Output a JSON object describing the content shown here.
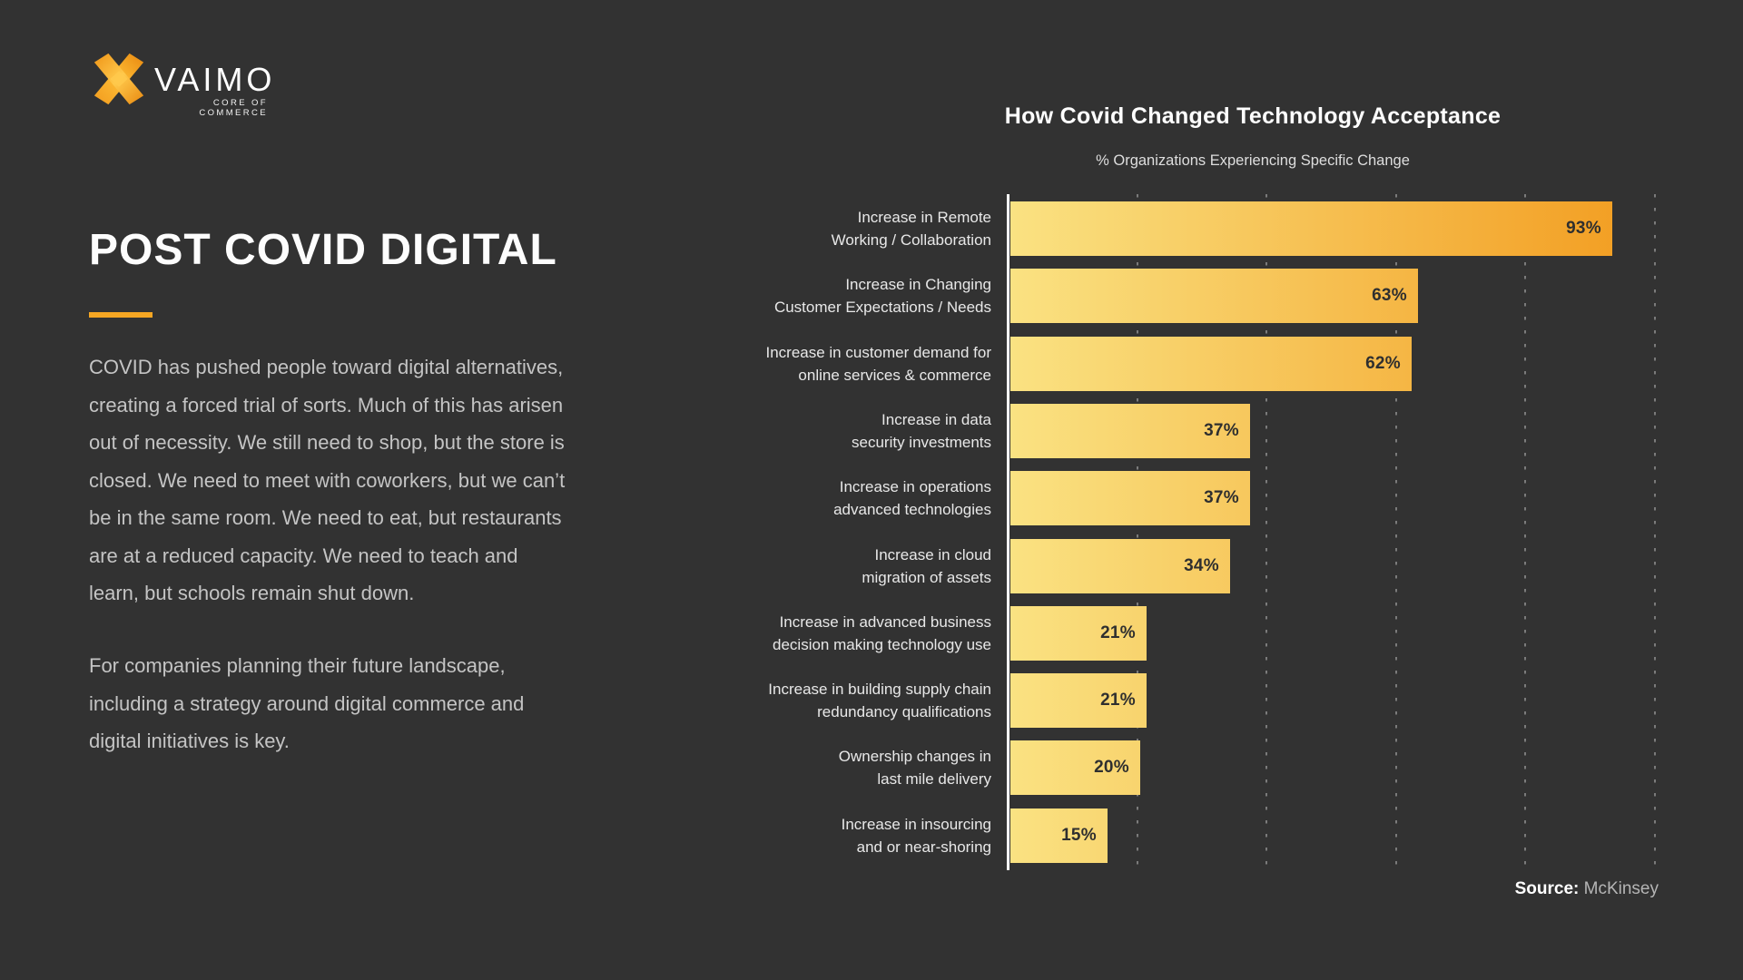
{
  "logo": {
    "brand": "VAIMO",
    "tagline": "CORE OF COMMERCE"
  },
  "left_panel": {
    "title": "POST COVID DIGITAL",
    "paragraph1": "COVID has pushed people toward digital alternatives,\ncreating a forced trial of sorts. Much of this has arisen\nout of necessity. We still need to shop, but the store is\nclosed. We need to meet with coworkers, but we can’t\nbe in the same room. We need to eat, but restaurants\nare at a reduced capacity. We need to teach and\nlearn, but schools remain shut down.",
    "paragraph2": "For companies planning their future landscape,\nincluding a strategy around digital commerce and\ndigital initiatives is key."
  },
  "chart": {
    "title": "How Covid Changed Technology Acceptance",
    "subtitle": "% Organizations Experiencing Specific Change",
    "source_label": "Source:",
    "source_value": "McKinsey"
  },
  "chart_data": {
    "type": "bar",
    "orientation": "horizontal",
    "title": "How Covid Changed Technology Acceptance",
    "subtitle": "% Organizations Experiencing Specific Change",
    "categories": [
      [
        "Increase in Remote",
        "Working / Collaboration"
      ],
      [
        "Increase in Changing",
        "Customer Expectations / Needs"
      ],
      [
        "Increase in customer demand for",
        "online services & commerce"
      ],
      [
        "Increase in data",
        "security investments"
      ],
      [
        "Increase in operations",
        "advanced technologies"
      ],
      [
        "Increase in cloud",
        "migration of assets"
      ],
      [
        "Increase in advanced business",
        "decision making technology use"
      ],
      [
        "Increase in building supply chain",
        "redundancy qualifications"
      ],
      [
        "Ownership changes in",
        "last mile delivery"
      ],
      [
        "Increase in insourcing",
        "and or near-shoring"
      ]
    ],
    "values": [
      93,
      63,
      62,
      37,
      37,
      34,
      21,
      21,
      20,
      15
    ],
    "unit": "%",
    "xlim": [
      0,
      100
    ],
    "gridlines_percent": [
      20,
      40,
      60,
      80,
      100
    ],
    "grid": "dotted-vertical",
    "legend": "none",
    "source": "McKinsey",
    "colors": {
      "background": "#323232",
      "bar_gradient_start": "#fae282",
      "bar_gradient_end": "#f29b1e",
      "accent_orange": "#f5a623",
      "value_label": "#2f2f2f",
      "axis": "#ffffff",
      "gridline": "#7b7b7b"
    }
  }
}
